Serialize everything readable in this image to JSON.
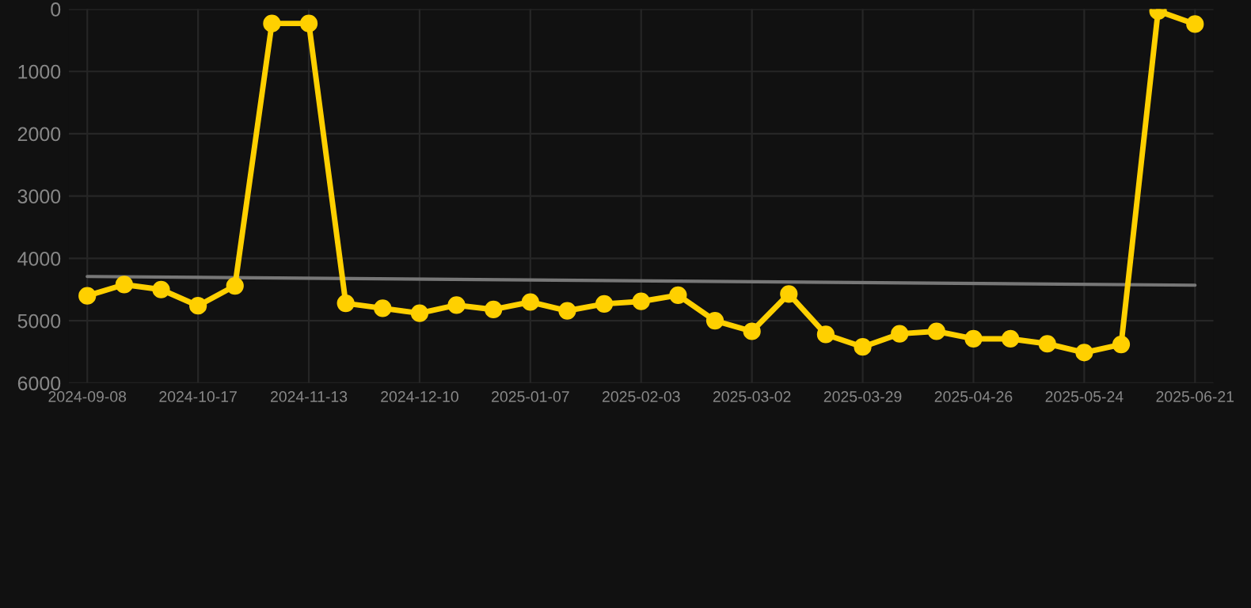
{
  "chart_data": {
    "type": "line",
    "categories": [
      "2024-09-08",
      null,
      null,
      "2024-10-17",
      null,
      null,
      "2024-11-13",
      null,
      null,
      "2024-12-10",
      null,
      null,
      "2025-01-07",
      null,
      null,
      "2025-02-03",
      null,
      null,
      "2025-03-02",
      null,
      null,
      "2025-03-29",
      null,
      null,
      "2025-04-26",
      null,
      null,
      "2025-05-24",
      null,
      null,
      "2025-06-21"
    ],
    "series": [
      {
        "color": "#ffd000",
        "marker": "circle",
        "values": [
          4600,
          4420,
          4500,
          4760,
          4440,
          230,
          230,
          4720,
          4800,
          4880,
          4750,
          4820,
          4700,
          4840,
          4730,
          4690,
          4590,
          5000,
          5170,
          4570,
          5220,
          5420,
          5210,
          5170,
          5290,
          5290,
          5370,
          5510,
          5380,
          30,
          240
        ]
      },
      {
        "color": "#777777",
        "marker": "none",
        "values": [
          4290,
          null,
          null,
          null,
          null,
          null,
          null,
          null,
          null,
          null,
          null,
          null,
          null,
          null,
          null,
          null,
          null,
          null,
          null,
          null,
          null,
          null,
          null,
          null,
          null,
          null,
          null,
          null,
          null,
          null,
          4430
        ]
      }
    ],
    "ylim": [
      6000,
      0
    ],
    "yticks": [
      0,
      1000,
      2000,
      3000,
      4000,
      5000,
      6000
    ],
    "grid": true
  }
}
